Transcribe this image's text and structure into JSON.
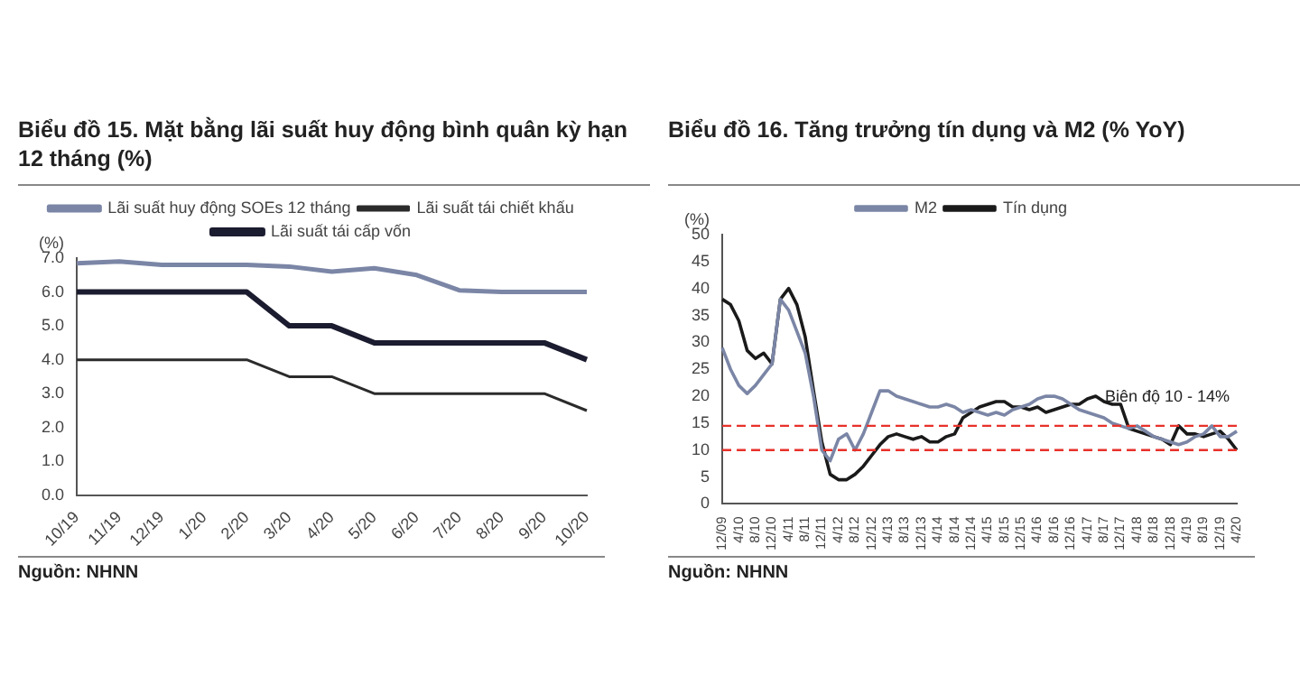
{
  "chart_data": [
    {
      "type": "line",
      "title": "Biểu đồ 15. Mặt bằng lãi suất huy động bình quân kỳ hạn 12 tháng (%)",
      "ylabel": "(%)",
      "categories": [
        "10/19",
        "11/19",
        "12/19",
        "1/20",
        "2/20",
        "3/20",
        "4/20",
        "5/20",
        "6/20",
        "7/20",
        "8/20",
        "9/20",
        "10/20"
      ],
      "series": [
        {
          "name": "Lãi suất huy động SOEs 12 tháng",
          "color": "#7b86a6",
          "values": [
            6.85,
            6.9,
            6.8,
            6.8,
            6.8,
            6.75,
            6.6,
            6.7,
            6.5,
            6.05,
            6.0,
            6.0,
            6.0
          ]
        },
        {
          "name": "Lãi suất tái chiết khấu",
          "color": "#2b2b2b",
          "values": [
            4,
            4,
            4,
            4,
            4,
            3.5,
            3.5,
            3,
            3,
            3,
            3,
            3,
            2.5
          ]
        },
        {
          "name": "Lãi suất tái cấp vốn",
          "color": "#1c1c30",
          "values": [
            6,
            6,
            6,
            6,
            6,
            5,
            5,
            4.5,
            4.5,
            4.5,
            4.5,
            4.5,
            4
          ]
        }
      ],
      "ylim": [
        0,
        7
      ],
      "yticks": [
        {
          "value": 0,
          "label": "0.0"
        },
        {
          "value": 1,
          "label": "1.0"
        },
        {
          "value": 2,
          "label": "2.0"
        },
        {
          "value": 3,
          "label": "3.0"
        },
        {
          "value": 4,
          "label": "4.0"
        },
        {
          "value": 5,
          "label": "5.0"
        },
        {
          "value": 6,
          "label": "6.0"
        },
        {
          "value": 7,
          "label": "7.0"
        }
      ],
      "grid": false,
      "legend": "top",
      "marker": "none",
      "annotations": [
        "Nguồn: NHNN"
      ]
    },
    {
      "type": "line",
      "title": "Biểu đồ 16. Tăng trưởng tín dụng và M2 (% YoY)",
      "ylabel": "(%)",
      "categories": [
        "12/09",
        null,
        "4/10",
        null,
        "8/10",
        null,
        "12/10",
        null,
        "4/11",
        null,
        "8/11",
        null,
        "12/11",
        null,
        "4/12",
        null,
        "8/12",
        null,
        "12/12",
        null,
        "4/13",
        null,
        "8/13",
        null,
        "12/13",
        null,
        "4/14",
        null,
        "8/14",
        null,
        "12/14",
        null,
        "4/15",
        null,
        "8/15",
        null,
        "12/15",
        null,
        "4/16",
        null,
        "8/16",
        null,
        "12/16",
        null,
        "4/17",
        null,
        "8/17",
        null,
        "12/17",
        null,
        "4/18",
        null,
        "8/18",
        null,
        "12/18",
        null,
        "4/19",
        null,
        "8/19",
        null,
        "12/19",
        null,
        "4/20"
      ],
      "series": [
        {
          "name": "M2",
          "color": "#7b86a6",
          "values": [
            29,
            25,
            22,
            20.5,
            22,
            24,
            26,
            38,
            36,
            32,
            28,
            20,
            10,
            8,
            12,
            13,
            10,
            13,
            17,
            21,
            21,
            20,
            19.5,
            19,
            18.5,
            18,
            18,
            18.5,
            18,
            17,
            17.5,
            17,
            16.5,
            17,
            16.5,
            17.5,
            18,
            18.5,
            19.5,
            20,
            20,
            19.5,
            18.5,
            17.5,
            17,
            16.5,
            16,
            15,
            14.5,
            14,
            14.5,
            13.5,
            12.5,
            12,
            11.5,
            11,
            11.5,
            12.5,
            13,
            14.5,
            12.5,
            12.5,
            13.5
          ]
        },
        {
          "name": "Tín dụng",
          "color": "#1a1a1a",
          "values": [
            38,
            37,
            34,
            28.5,
            27,
            28,
            26,
            38,
            40,
            37,
            31,
            21,
            11.5,
            5.5,
            4.5,
            4.5,
            5.5,
            7,
            9,
            11,
            12.5,
            13,
            12.5,
            12,
            12.5,
            11.5,
            11.5,
            12.5,
            13,
            16,
            17,
            18,
            18.5,
            19,
            19,
            18,
            18,
            17.5,
            18,
            17,
            17.5,
            18,
            18.5,
            18.5,
            19.5,
            20,
            19,
            18.5,
            18.5,
            14,
            13.5,
            13,
            12.5,
            12,
            11,
            14.5,
            13,
            13,
            12.5,
            13,
            13.5,
            12,
            10
          ]
        }
      ],
      "ylim": [
        0,
        50
      ],
      "yticks": [
        0,
        5,
        10,
        15,
        20,
        25,
        30,
        35,
        40,
        45,
        50
      ],
      "ref_lines": [
        {
          "axis": "y",
          "value": 14.5,
          "label": "Biên độ 10 - 14%",
          "color": "#e8312a",
          "line_style": "dashed"
        },
        {
          "axis": "y",
          "value": 10,
          "label": null,
          "color": "#e8312a",
          "line_style": "dashed"
        }
      ],
      "grid": false,
      "legend": "top",
      "marker": "none",
      "annotations": [
        "Nguồn: NHNN"
      ]
    }
  ]
}
